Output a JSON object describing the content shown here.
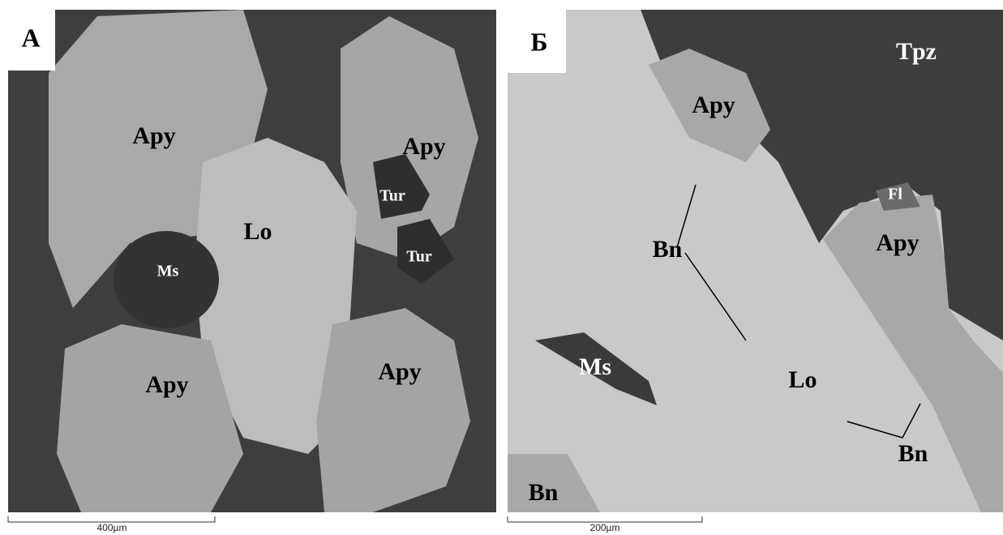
{
  "panels": [
    {
      "letter": "А",
      "labels": [
        "Apy",
        "Apy",
        "Tur",
        "Lo",
        "Tur",
        "Ms",
        "Apy",
        "Apy"
      ],
      "scale_bar": "400µm"
    },
    {
      "letter": "Б",
      "labels": [
        "Tpz",
        "Apy",
        "Fl",
        "Bn",
        "Apy",
        "Ms",
        "Lo",
        "Bn",
        "Bn"
      ],
      "scale_bar": "200µm"
    }
  ]
}
